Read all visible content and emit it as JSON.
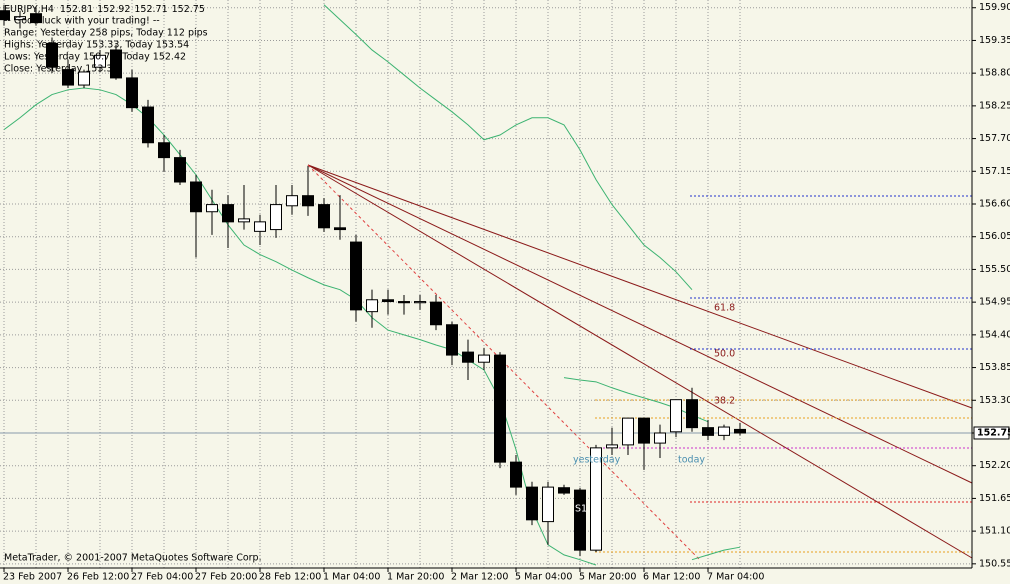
{
  "chart_data": {
    "type": "candlestick",
    "title": "EURJPY,H4",
    "quote": [
      152.81,
      152.92,
      152.71,
      152.75
    ],
    "notes": [
      "-- Good luck with your trading! --",
      "Range: Yesterday 258 pips, Today 112 pips",
      "Highs: Yesterday 153.33, Today 153.54",
      "Lows: Yesterday 150.75, Today 152.42",
      "Close: Yesterday 153.30"
    ],
    "footer": "MetaTrader, © 2001-2007 MetaQuotes Software Corp.",
    "annotations": [
      "61.8",
      "50.0",
      "38.2",
      "yesterday",
      "today",
      "S1"
    ],
    "categories": [
      "23 Feb 2007",
      null,
      null,
      null,
      "26 Feb 12:00",
      null,
      null,
      null,
      "27 Feb 04:00",
      null,
      null,
      null,
      "27 Feb 20:00",
      null,
      null,
      null,
      "28 Feb 12:00",
      null,
      null,
      null,
      "1 Mar 04:00",
      null,
      null,
      null,
      "1 Mar 20:00",
      null,
      null,
      null,
      "2 Mar 12:00",
      null,
      null,
      null,
      "5 Mar 04:00",
      null,
      null,
      null,
      "5 Mar 20:00",
      null,
      null,
      null,
      "6 Mar 12:00",
      null,
      null,
      null,
      "7 Mar 04:00",
      null,
      null
    ],
    "open": [
      159.85,
      159.7,
      159.8,
      159.3,
      158.86,
      158.6,
      158.9,
      159.19,
      158.72,
      158.23,
      157.63,
      157.38,
      156.97,
      156.47,
      156.59,
      156.3,
      156.14,
      156.17,
      156.57,
      156.74,
      156.59,
      156.2,
      155.96,
      154.79,
      154.99,
      154.96,
      154.94,
      154.95,
      154.57,
      154.11,
      153.94,
      154.06,
      152.26,
      151.84,
      151.26,
      151.83,
      151.79,
      150.78,
      152.5,
      152.55,
      153.0,
      152.58,
      152.77,
      153.31,
      152.84,
      152.71,
      152.81
    ],
    "high": [
      159.95,
      159.85,
      159.9,
      159.4,
      159.03,
      158.86,
      159.19,
      159.28,
      158.86,
      158.35,
      157.76,
      157.51,
      157.09,
      156.84,
      156.75,
      156.92,
      156.42,
      156.92,
      156.92,
      157.24,
      156.7,
      156.75,
      156.08,
      155.16,
      155.16,
      155.07,
      155.07,
      155.07,
      154.62,
      154.32,
      154.18,
      154.11,
      152.38,
      151.93,
      151.93,
      151.88,
      151.83,
      152.55,
      152.84,
      153.0,
      153.0,
      152.89,
      153.31,
      153.51,
      152.97,
      152.89,
      152.92
    ],
    "low": [
      159.6,
      159.55,
      159.6,
      158.8,
      158.55,
      158.55,
      158.82,
      158.69,
      158.15,
      157.55,
      157.14,
      156.92,
      155.7,
      156.08,
      155.86,
      156.17,
      155.91,
      156.03,
      156.42,
      156.4,
      156.13,
      156.0,
      154.62,
      154.52,
      154.74,
      154.74,
      154.82,
      154.48,
      153.89,
      153.64,
      153.81,
      152.16,
      151.71,
      151.2,
      150.87,
      151.71,
      150.68,
      150.75,
      152.38,
      152.38,
      152.13,
      152.33,
      152.68,
      152.77,
      152.63,
      152.63,
      152.71
    ],
    "close": [
      159.7,
      159.75,
      159.65,
      158.9,
      158.6,
      158.82,
      159.1,
      158.72,
      158.22,
      157.63,
      157.38,
      156.97,
      156.47,
      156.59,
      156.3,
      156.35,
      156.3,
      156.59,
      156.74,
      156.57,
      156.2,
      156.17,
      154.82,
      154.99,
      154.96,
      154.94,
      154.96,
      154.57,
      154.06,
      153.94,
      154.06,
      152.26,
      151.84,
      151.29,
      151.84,
      151.74,
      150.78,
      152.5,
      152.55,
      153.0,
      152.58,
      152.75,
      153.31,
      152.84,
      152.71,
      152.85,
      152.75
    ],
    "up_color": "#ffffff",
    "down_color": "#000000",
    "lines": [
      {
        "color": "#3cb371",
        "values": [
          null,
          null,
          null,
          null,
          null,
          null,
          null,
          null,
          null,
          null,
          null,
          null,
          null,
          null,
          null,
          null,
          null,
          null,
          null,
          null,
          159.95,
          159.7,
          159.45,
          159.19,
          158.99,
          158.77,
          158.55,
          158.35,
          158.15,
          157.93,
          157.68,
          157.76,
          157.93,
          158.05,
          158.05,
          157.93,
          157.51,
          157.01,
          156.59,
          156.25,
          155.91,
          155.7,
          155.46,
          155.16,
          null,
          null,
          null
        ]
      },
      {
        "color": "#3cb371",
        "values": [
          157.85,
          158.05,
          158.27,
          158.44,
          158.52,
          158.55,
          158.52,
          158.44,
          158.27,
          158.05,
          157.76,
          157.43,
          157.09,
          156.67,
          156.25,
          155.91,
          155.75,
          155.63,
          155.49,
          155.36,
          155.24,
          155.16,
          154.99,
          154.69,
          154.48,
          154.4,
          154.32,
          154.23,
          154.15,
          153.98,
          153.81,
          153.31,
          152.47,
          151.46,
          150.87,
          150.7,
          150.62,
          150.53,
          null,
          null,
          null,
          null,
          null,
          null,
          null,
          null,
          null
        ]
      },
      {
        "color": "#3cb371",
        "values": [
          null,
          null,
          null,
          null,
          null,
          null,
          null,
          null,
          null,
          null,
          null,
          null,
          null,
          null,
          null,
          null,
          null,
          null,
          null,
          null,
          null,
          null,
          null,
          null,
          null,
          null,
          null,
          null,
          null,
          null,
          null,
          null,
          null,
          null,
          null,
          153.68,
          153.64,
          153.61,
          153.51,
          153.42,
          153.34,
          153.26,
          153.17,
          153.05,
          152.94,
          null,
          null
        ]
      },
      {
        "color": "#3cb371",
        "values": [
          null,
          null,
          null,
          null,
          null,
          null,
          null,
          null,
          null,
          null,
          null,
          null,
          null,
          null,
          null,
          null,
          null,
          null,
          null,
          null,
          null,
          null,
          null,
          null,
          null,
          null,
          null,
          null,
          null,
          null,
          null,
          null,
          null,
          null,
          null,
          null,
          null,
          null,
          null,
          null,
          null,
          null,
          null,
          150.62,
          150.7,
          150.78,
          150.83
        ]
      }
    ],
    "ylim": [
      150.48,
      160.03
    ],
    "yticks": [
      {
        "value": 159.9,
        "label": "159.90"
      },
      159.35,
      {
        "value": 158.8,
        "label": "158.80"
      },
      158.25,
      {
        "value": 157.7,
        "label": "157.70"
      },
      157.15,
      {
        "value": 156.6,
        "label": "156.60"
      },
      156.05,
      {
        "value": 155.5,
        "label": "155.50"
      },
      154.95,
      {
        "value": 154.4,
        "label": "154.40"
      },
      153.85,
      {
        "value": 153.3,
        "label": "153.30"
      },
      152.75,
      {
        "value": 152.2,
        "label": "152.20"
      },
      151.65,
      {
        "value": 151.1,
        "label": "151.10"
      },
      150.55
    ],
    "grid": true
  }
}
